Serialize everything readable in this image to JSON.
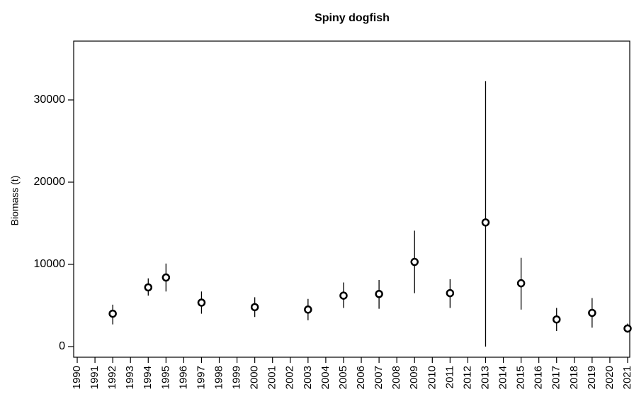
{
  "chart_data": {
    "type": "scatter",
    "title": "Spiny dogfish",
    "ylabel": "Biomass (t)",
    "x": [
      1992,
      1994,
      1995,
      1997,
      2000,
      2003,
      2005,
      2007,
      2009,
      2011,
      2013,
      2015,
      2017,
      2019,
      2021
    ],
    "values": [
      4000,
      7200,
      8400,
      5350,
      4800,
      4500,
      6200,
      6400,
      10300,
      6500,
      15100,
      7700,
      3300,
      4100,
      2200
    ],
    "lower": [
      2700,
      6200,
      6700,
      4000,
      3600,
      3200,
      4700,
      4600,
      6500,
      4700,
      0,
      4500,
      1900,
      2300,
      1700
    ],
    "upper": [
      5100,
      8300,
      10100,
      6700,
      6000,
      5800,
      7800,
      8100,
      14100,
      8200,
      32300,
      10800,
      4700,
      5900,
      2800
    ],
    "color": "#000000",
    "xlim": [
      1989.8,
      2021.12
    ],
    "xticks": [
      1990,
      1991,
      1992,
      1993,
      1994,
      1995,
      1996,
      1997,
      1998,
      1999,
      2000,
      2001,
      2002,
      2003,
      2004,
      2005,
      2006,
      2007,
      2008,
      2009,
      2010,
      2011,
      2012,
      2013,
      2014,
      2015,
      2016,
      2017,
      2018,
      2019,
      2020,
      2021
    ],
    "ylim": [
      -1293,
      37155
    ],
    "yticks": [
      0,
      10000,
      20000,
      30000
    ]
  }
}
